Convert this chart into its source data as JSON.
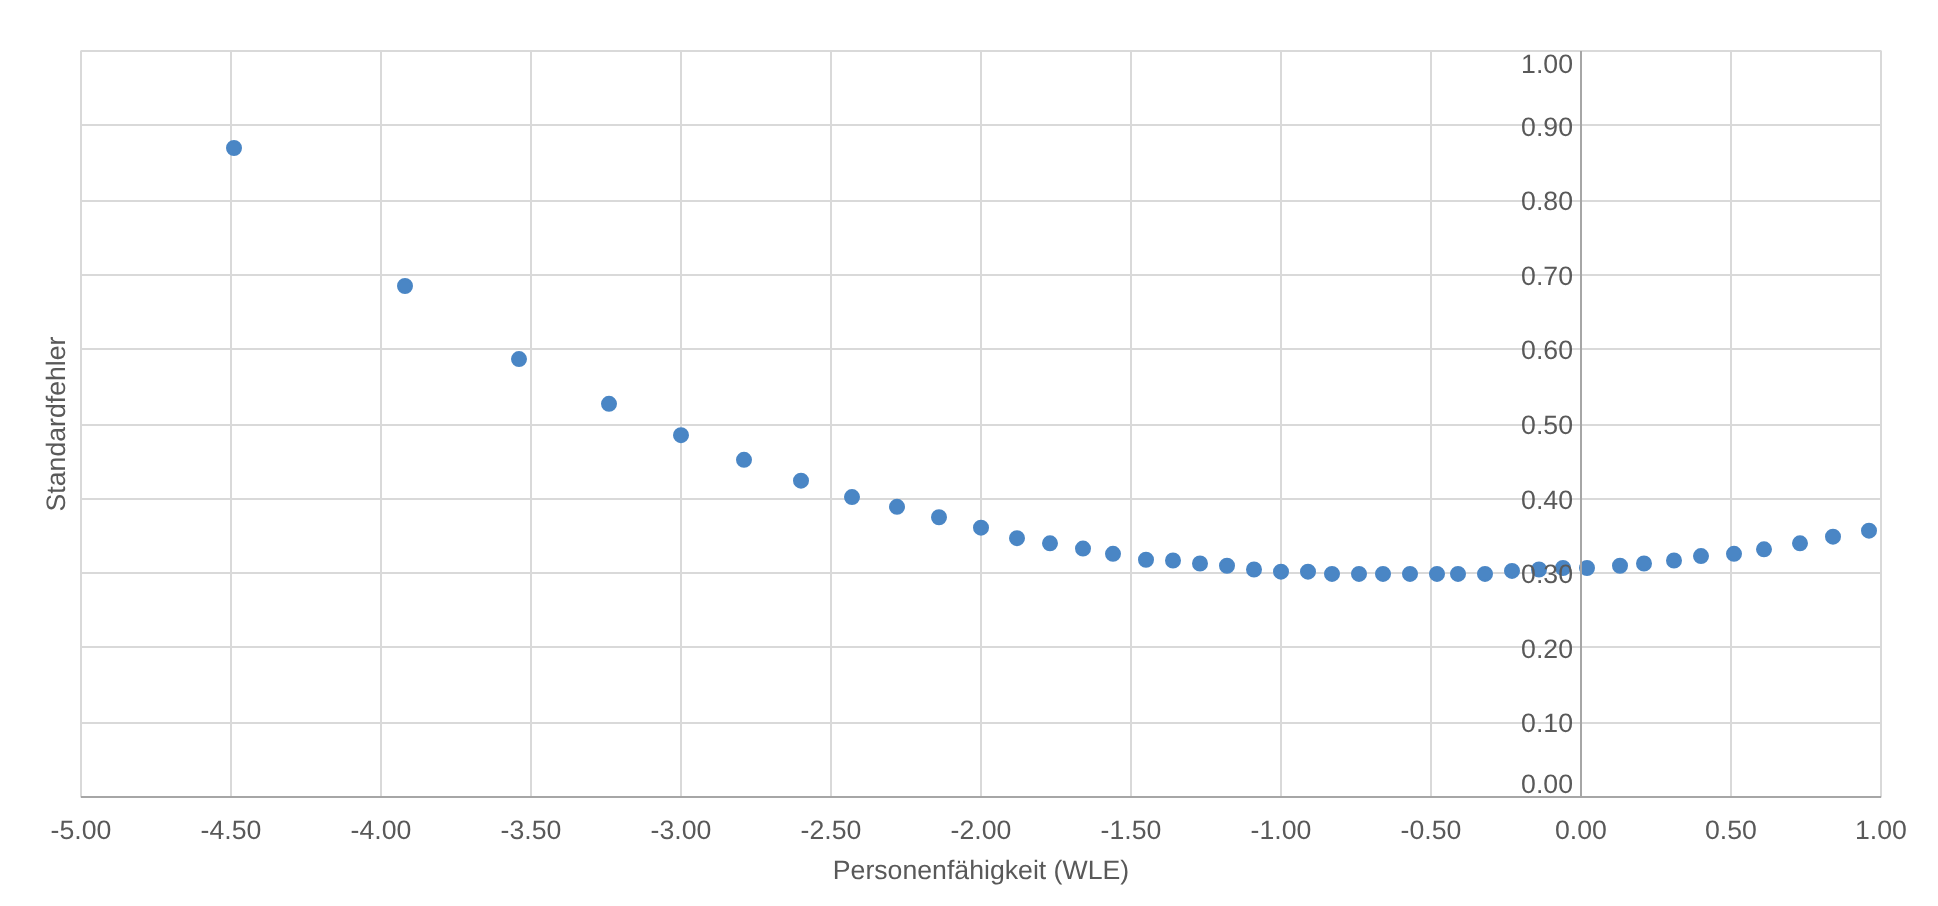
{
  "chart_data": {
    "type": "scatter",
    "xlabel": "Personenfähigkeit (WLE)",
    "ylabel": "Standardfehler",
    "xlim": [
      -5,
      1
    ],
    "xticks": [
      {
        "value": -5,
        "label": "-5.00"
      },
      {
        "value": -4.5,
        "label": "-4.50"
      },
      {
        "value": -4,
        "label": "-4.00"
      },
      {
        "value": -3.5,
        "label": "-3.50"
      },
      {
        "value": -3,
        "label": "-3.00"
      },
      {
        "value": -2.5,
        "label": "-2.50"
      },
      {
        "value": -2,
        "label": "-2.00"
      },
      {
        "value": -1.5,
        "label": "-1.50"
      },
      {
        "value": -1,
        "label": "-1.00"
      },
      {
        "value": -0.5,
        "label": "-0.50"
      },
      {
        "value": 0,
        "label": "0.00"
      },
      {
        "value": 0.5,
        "label": "0.50"
      },
      {
        "value": 1,
        "label": "1.00"
      }
    ],
    "ylim": [
      0,
      1
    ],
    "yticks": [
      {
        "value": 0,
        "label": "0.00"
      },
      {
        "value": 0.1,
        "label": "0.10"
      },
      {
        "value": 0.2,
        "label": "0.20"
      },
      {
        "value": 0.3,
        "label": "0.30"
      },
      {
        "value": 0.4,
        "label": "0.40"
      },
      {
        "value": 0.5,
        "label": "0.50"
      },
      {
        "value": 0.6,
        "label": "0.60"
      },
      {
        "value": 0.7,
        "label": "0.70"
      },
      {
        "value": 0.8,
        "label": "0.80"
      },
      {
        "value": 0.9,
        "label": "0.90"
      },
      {
        "value": 1,
        "label": "1.00"
      }
    ],
    "grid": true,
    "marker": "circle",
    "series": [
      {
        "color": "#4a86c5",
        "x": [
          -4.49,
          -3.92,
          -3.54,
          -3.24,
          -3.0,
          -2.79,
          -2.6,
          -2.43,
          -2.28,
          -2.14,
          -2.0,
          -1.88,
          -1.77,
          -1.66,
          -1.56,
          -1.45,
          -1.36,
          -1.27,
          -1.18,
          -1.09,
          -1.0,
          -0.91,
          -0.83,
          -0.74,
          -0.66,
          -0.57,
          -0.48,
          -0.41,
          -0.32,
          -0.23,
          -0.14,
          -0.06,
          0.02,
          0.13,
          0.21,
          0.31,
          0.4,
          0.51,
          0.61,
          0.73,
          0.84,
          0.96
        ],
        "values": [
          0.87,
          0.685,
          0.587,
          0.527,
          0.485,
          0.452,
          0.424,
          0.402,
          0.389,
          0.375,
          0.361,
          0.347,
          0.34,
          0.333,
          0.326,
          0.318,
          0.317,
          0.313,
          0.31,
          0.305,
          0.302,
          0.302,
          0.299,
          0.299,
          0.299,
          0.299,
          0.299,
          0.299,
          0.299,
          0.303,
          0.305,
          0.307,
          0.307,
          0.31,
          0.313,
          0.317,
          0.323,
          0.326,
          0.332,
          0.34,
          0.349,
          0.357
        ]
      }
    ]
  }
}
